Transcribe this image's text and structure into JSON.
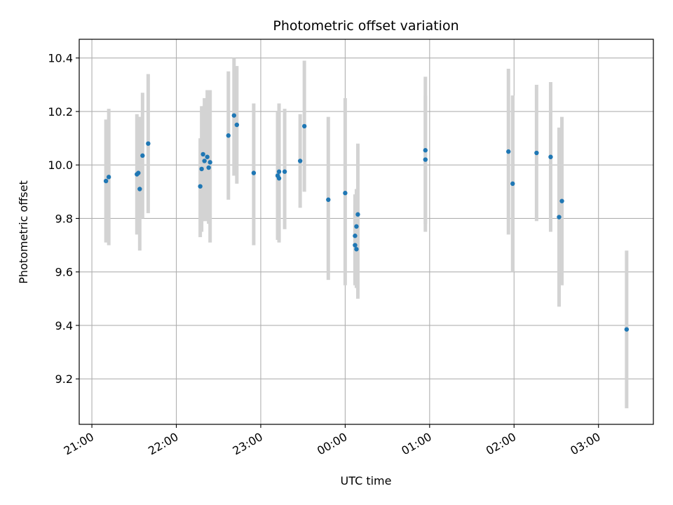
{
  "chart_data": {
    "type": "scatter",
    "title": "Photometric offset variation",
    "xlabel": "UTC time",
    "ylabel": "Photometric offset",
    "x_axis_kind": "time",
    "x_ticks": [
      "21:00",
      "22:00",
      "23:00",
      "00:00",
      "01:00",
      "02:00",
      "03:00"
    ],
    "y_ticks": [
      "9.2",
      "9.4",
      "9.6",
      "9.8",
      "10.0",
      "10.2",
      "10.4"
    ],
    "ylim": [
      9.03,
      10.47
    ],
    "xlim": [
      "20:51",
      "03:39"
    ],
    "grid": true,
    "colors": {
      "point": "#1f77b4",
      "errorbar": "#d3d3d3",
      "grid": "#b0b0b0"
    },
    "points": [
      {
        "x": "21:10",
        "y": 9.94,
        "ylow": 9.71,
        "yhigh": 10.17
      },
      {
        "x": "21:12",
        "y": 9.955,
        "ylow": 9.7,
        "yhigh": 10.21
      },
      {
        "x": "21:32",
        "y": 9.965,
        "ylow": 9.74,
        "yhigh": 10.19
      },
      {
        "x": "21:33",
        "y": 9.97,
        "ylow": 9.76,
        "yhigh": 10.18
      },
      {
        "x": "21:34",
        "y": 9.91,
        "ylow": 9.68,
        "yhigh": 10.18
      },
      {
        "x": "21:36",
        "y": 10.035,
        "ylow": 9.8,
        "yhigh": 10.27
      },
      {
        "x": "21:40",
        "y": 10.08,
        "ylow": 9.82,
        "yhigh": 10.34
      },
      {
        "x": "22:17",
        "y": 9.92,
        "ylow": 9.73,
        "yhigh": 10.1
      },
      {
        "x": "22:18",
        "y": 9.985,
        "ylow": 9.75,
        "yhigh": 10.22
      },
      {
        "x": "22:19",
        "y": 10.04,
        "ylow": 9.79,
        "yhigh": 10.22
      },
      {
        "x": "22:20",
        "y": 10.015,
        "ylow": 9.79,
        "yhigh": 10.25
      },
      {
        "x": "22:22",
        "y": 10.03,
        "ylow": 9.79,
        "yhigh": 10.28
      },
      {
        "x": "22:23",
        "y": 9.99,
        "ylow": 9.78,
        "yhigh": 10.28
      },
      {
        "x": "22:24",
        "y": 10.01,
        "ylow": 9.71,
        "yhigh": 10.28
      },
      {
        "x": "22:37",
        "y": 10.11,
        "ylow": 9.87,
        "yhigh": 10.35
      },
      {
        "x": "22:41",
        "y": 10.185,
        "ylow": 9.96,
        "yhigh": 10.4
      },
      {
        "x": "22:43",
        "y": 10.15,
        "ylow": 9.93,
        "yhigh": 10.37
      },
      {
        "x": "22:55",
        "y": 9.97,
        "ylow": 9.7,
        "yhigh": 10.23
      },
      {
        "x": "23:12",
        "y": 9.96,
        "ylow": 9.72,
        "yhigh": 10.2
      },
      {
        "x": "23:13",
        "y": 9.975,
        "ylow": 9.71,
        "yhigh": 10.23
      },
      {
        "x": "23:13",
        "y": 9.95,
        "ylow": 9.72,
        "yhigh": 10.2
      },
      {
        "x": "23:17",
        "y": 9.975,
        "ylow": 9.76,
        "yhigh": 10.21
      },
      {
        "x": "23:28",
        "y": 10.015,
        "ylow": 9.84,
        "yhigh": 10.19
      },
      {
        "x": "23:31",
        "y": 10.145,
        "ylow": 9.9,
        "yhigh": 10.39
      },
      {
        "x": "23:48",
        "y": 9.87,
        "ylow": 9.57,
        "yhigh": 10.18
      },
      {
        "x": "00:00",
        "y": 9.895,
        "ylow": 9.55,
        "yhigh": 10.25
      },
      {
        "x": "00:07",
        "y": 9.735,
        "ylow": 9.57,
        "yhigh": 9.89
      },
      {
        "x": "00:07",
        "y": 9.7,
        "ylow": 9.55,
        "yhigh": 9.85
      },
      {
        "x": "00:08",
        "y": 9.685,
        "ylow": 9.54,
        "yhigh": 9.83
      },
      {
        "x": "00:08",
        "y": 9.77,
        "ylow": 9.6,
        "yhigh": 9.91
      },
      {
        "x": "00:09",
        "y": 9.815,
        "ylow": 9.5,
        "yhigh": 10.08
      },
      {
        "x": "00:57",
        "y": 10.055,
        "ylow": 9.78,
        "yhigh": 10.33
      },
      {
        "x": "00:57",
        "y": 10.02,
        "ylow": 9.75,
        "yhigh": 10.26
      },
      {
        "x": "01:56",
        "y": 10.05,
        "ylow": 9.74,
        "yhigh": 10.36
      },
      {
        "x": "01:59",
        "y": 9.93,
        "ylow": 9.6,
        "yhigh": 10.26
      },
      {
        "x": "02:16",
        "y": 10.045,
        "ylow": 9.79,
        "yhigh": 10.3
      },
      {
        "x": "02:26",
        "y": 10.03,
        "ylow": 9.75,
        "yhigh": 10.31
      },
      {
        "x": "02:32",
        "y": 9.805,
        "ylow": 9.47,
        "yhigh": 10.14
      },
      {
        "x": "02:34",
        "y": 9.865,
        "ylow": 9.55,
        "yhigh": 10.18
      },
      {
        "x": "03:20",
        "y": 9.385,
        "ylow": 9.09,
        "yhigh": 9.68
      }
    ]
  }
}
